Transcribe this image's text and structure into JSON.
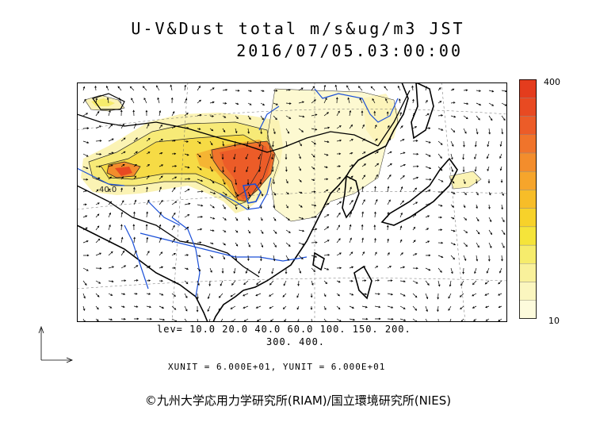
{
  "title": {
    "line1": "U-V&Dust total m/s&ug/m3 JST",
    "line2": "2016/07/05.03:00:00"
  },
  "colorbar": {
    "max_label": "400",
    "min_label": "10",
    "colors": [
      "#fdfbdc",
      "#fbf6bf",
      "#f9f19b",
      "#f6ec6c",
      "#f5e43a",
      "#f7d22a",
      "#f7bd28",
      "#f6a52b",
      "#f38d2c",
      "#f0742b",
      "#ec5c28",
      "#e84a22",
      "#e43c1d"
    ]
  },
  "levels": {
    "line1": "lev= 10.0 20.0 40.0 60.0 100. 150. 200.",
    "line2": "300. 400."
  },
  "units": "XUNIT = 6.000E+01, YUNIT = 6.000E+01",
  "credit": "©九州大学応用力学研究所(RIAM)/国立環境研究所(NIES)",
  "map_labels": {
    "contour_label": "40.0"
  },
  "colors": {
    "coast": "#000000",
    "rivers": "#1a4fd8",
    "grid": "#666666"
  }
}
